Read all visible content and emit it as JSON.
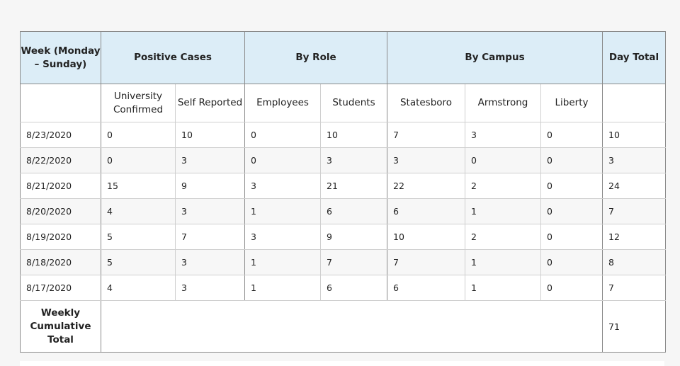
{
  "headers": {
    "week": "Week (Monday – Sunday)",
    "positive_cases": "Positive Cases",
    "by_role": "By Role",
    "by_campus": "By Campus",
    "day_total": "Day Total"
  },
  "subheaders": {
    "university_confirmed": "University Confirmed",
    "self_reported": "Self Reported",
    "employees": "Employees",
    "students": "Students",
    "statesboro": "Statesboro",
    "armstrong": "Armstrong",
    "liberty": "Liberty"
  },
  "rows": [
    {
      "date": "8/23/2020",
      "university_confirmed": "0",
      "self_reported": "10",
      "employees": "0",
      "students": "10",
      "statesboro": "7",
      "armstrong": "3",
      "liberty": "0",
      "day_total": "10"
    },
    {
      "date": "8/22/2020",
      "university_confirmed": "0",
      "self_reported": "3",
      "employees": "0",
      "students": "3",
      "statesboro": "3",
      "armstrong": "0",
      "liberty": "0",
      "day_total": "3"
    },
    {
      "date": "8/21/2020",
      "university_confirmed": "15",
      "self_reported": "9",
      "employees": "3",
      "students": "21",
      "statesboro": "22",
      "armstrong": "2",
      "liberty": "0",
      "day_total": "24"
    },
    {
      "date": "8/20/2020",
      "university_confirmed": "4",
      "self_reported": "3",
      "employees": "1",
      "students": "6",
      "statesboro": "6",
      "armstrong": "1",
      "liberty": "0",
      "day_total": "7"
    },
    {
      "date": "8/19/2020",
      "university_confirmed": "5",
      "self_reported": "7",
      "employees": "3",
      "students": "9",
      "statesboro": "10",
      "armstrong": "2",
      "liberty": "0",
      "day_total": "12"
    },
    {
      "date": "8/18/2020",
      "university_confirmed": "5",
      "self_reported": "3",
      "employees": "1",
      "students": "7",
      "statesboro": "7",
      "armstrong": "1",
      "liberty": "0",
      "day_total": "8"
    },
    {
      "date": "8/17/2020",
      "university_confirmed": "4",
      "self_reported": "3",
      "employees": "1",
      "students": "6",
      "statesboro": "6",
      "armstrong": "1",
      "liberty": "0",
      "day_total": "7"
    }
  ],
  "weekly": {
    "label": "Weekly Cumulative Total",
    "total": "71"
  }
}
